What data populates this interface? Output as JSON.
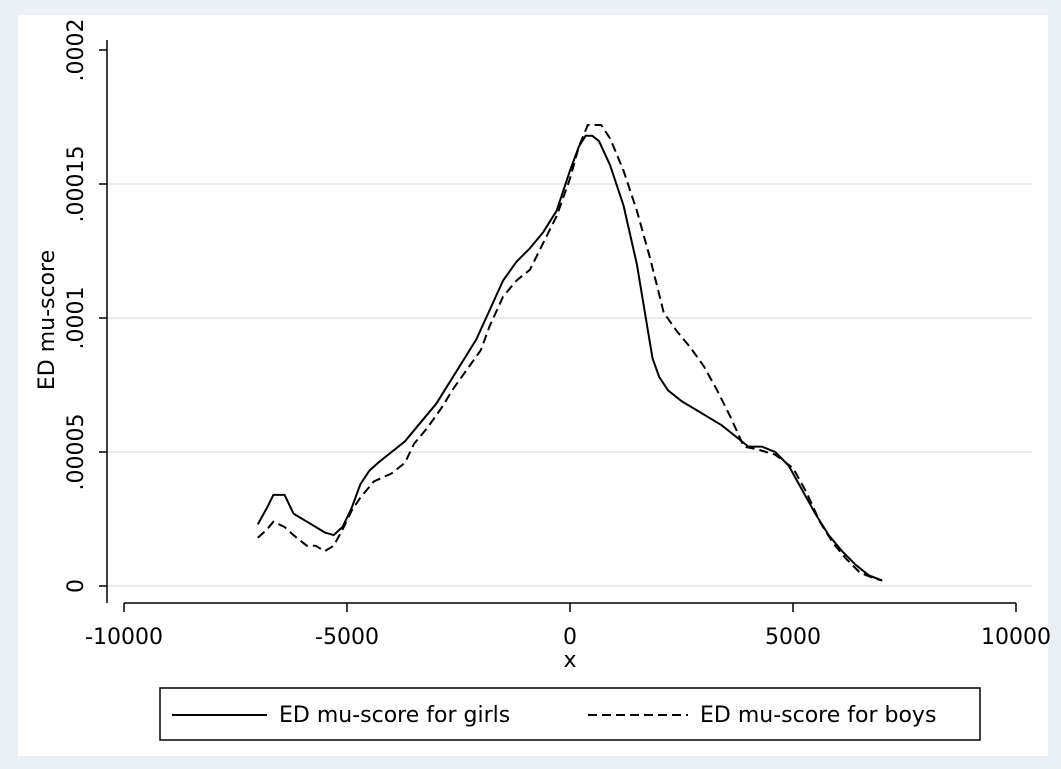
{
  "chart_data": {
    "type": "line",
    "title": "",
    "xlabel": "x",
    "ylabel": "ED mu-score",
    "xlim": [
      -10000,
      10000
    ],
    "ylim": [
      0,
      0.0002
    ],
    "x_ticks": [
      -10000,
      -5000,
      0,
      5000,
      10000
    ],
    "x_tick_labels": [
      "-10000",
      "-5000",
      "0",
      "5000",
      "10000"
    ],
    "y_ticks": [
      0,
      5e-05,
      0.0001,
      0.00015,
      0.0002
    ],
    "y_tick_labels": [
      "0",
      ".00005",
      ".0001",
      ".00015",
      ".0002"
    ],
    "grid": true,
    "legend_position": "bottom",
    "colors": {
      "plot_bg": "#ffffff",
      "outer_bg": "#eaf0f3",
      "grid": "#e6ebee",
      "line": "#000000"
    },
    "series": [
      {
        "name": "ED mu-score for girls",
        "style": "solid",
        "points": [
          [
            -7000,
            2.3e-05
          ],
          [
            -6800,
            2.9e-05
          ],
          [
            -6650,
            3.4e-05
          ],
          [
            -6400,
            3.4e-05
          ],
          [
            -6200,
            2.7e-05
          ],
          [
            -5900,
            2.4e-05
          ],
          [
            -5700,
            2.2e-05
          ],
          [
            -5500,
            2e-05
          ],
          [
            -5300,
            1.9e-05
          ],
          [
            -5100,
            2.2e-05
          ],
          [
            -4900,
            2.9e-05
          ],
          [
            -4700,
            3.8e-05
          ],
          [
            -4500,
            4.3e-05
          ],
          [
            -4300,
            4.6e-05
          ],
          [
            -4000,
            5e-05
          ],
          [
            -3700,
            5.4e-05
          ],
          [
            -3300,
            6.2e-05
          ],
          [
            -3000,
            6.8e-05
          ],
          [
            -2700,
            7.6e-05
          ],
          [
            -2400,
            8.4e-05
          ],
          [
            -2100,
            9.2e-05
          ],
          [
            -1800,
            0.000103
          ],
          [
            -1500,
            0.000114
          ],
          [
            -1200,
            0.000121
          ],
          [
            -900,
            0.000126
          ],
          [
            -600,
            0.000132
          ],
          [
            -300,
            0.00014
          ],
          [
            0,
            0.000155
          ],
          [
            200,
            0.000164
          ],
          [
            350,
            0.000168
          ],
          [
            500,
            0.000168
          ],
          [
            650,
            0.000166
          ],
          [
            900,
            0.000157
          ],
          [
            1200,
            0.000142
          ],
          [
            1500,
            0.00012
          ],
          [
            1700,
            0.0001
          ],
          [
            1850,
            8.5e-05
          ],
          [
            2000,
            7.8e-05
          ],
          [
            2200,
            7.3e-05
          ],
          [
            2500,
            6.9e-05
          ],
          [
            2800,
            6.6e-05
          ],
          [
            3100,
            6.3e-05
          ],
          [
            3400,
            6e-05
          ],
          [
            3700,
            5.6e-05
          ],
          [
            4000,
            5.2e-05
          ],
          [
            4300,
            5.2e-05
          ],
          [
            4600,
            5e-05
          ],
          [
            4900,
            4.5e-05
          ],
          [
            5200,
            3.6e-05
          ],
          [
            5500,
            2.7e-05
          ],
          [
            5800,
            1.9e-05
          ],
          [
            6100,
            1.3e-05
          ],
          [
            6400,
            8e-06
          ],
          [
            6700,
            4e-06
          ],
          [
            7000,
            2e-06
          ]
        ]
      },
      {
        "name": "ED mu-score for boys",
        "style": "dashed",
        "points": [
          [
            -7000,
            1.8e-05
          ],
          [
            -6800,
            2.1e-05
          ],
          [
            -6650,
            2.4e-05
          ],
          [
            -6400,
            2.2e-05
          ],
          [
            -6200,
            1.9e-05
          ],
          [
            -5900,
            1.5e-05
          ],
          [
            -5700,
            1.5e-05
          ],
          [
            -5500,
            1.3e-05
          ],
          [
            -5300,
            1.5e-05
          ],
          [
            -5100,
            2.1e-05
          ],
          [
            -4900,
            2.8e-05
          ],
          [
            -4700,
            3.3e-05
          ],
          [
            -4400,
            3.9e-05
          ],
          [
            -4000,
            4.2e-05
          ],
          [
            -3700,
            4.6e-05
          ],
          [
            -3500,
            5.3e-05
          ],
          [
            -3200,
            5.9e-05
          ],
          [
            -2900,
            6.6e-05
          ],
          [
            -2600,
            7.4e-05
          ],
          [
            -2300,
            8.1e-05
          ],
          [
            -2000,
            8.8e-05
          ],
          [
            -1800,
            9.7e-05
          ],
          [
            -1500,
            0.000108
          ],
          [
            -1200,
            0.000114
          ],
          [
            -900,
            0.000118
          ],
          [
            -600,
            0.000128
          ],
          [
            -300,
            0.000138
          ],
          [
            0,
            0.000152
          ],
          [
            200,
            0.000164
          ],
          [
            400,
            0.000172
          ],
          [
            700,
            0.000172
          ],
          [
            900,
            0.000167
          ],
          [
            1200,
            0.000155
          ],
          [
            1500,
            0.00014
          ],
          [
            1800,
            0.000122
          ],
          [
            2100,
            0.000102
          ],
          [
            2400,
            9.5e-05
          ],
          [
            2700,
            8.9e-05
          ],
          [
            3000,
            8.2e-05
          ],
          [
            3300,
            7.3e-05
          ],
          [
            3600,
            6.3e-05
          ],
          [
            3900,
            5.2e-05
          ],
          [
            4200,
            5.1e-05
          ],
          [
            4600,
            4.9e-05
          ],
          [
            5000,
            4.4e-05
          ],
          [
            5300,
            3.5e-05
          ],
          [
            5600,
            2.4e-05
          ],
          [
            5900,
            1.6e-05
          ],
          [
            6200,
            1e-05
          ],
          [
            6500,
            5e-06
          ],
          [
            6800,
            3e-06
          ],
          [
            7000,
            2e-06
          ]
        ]
      }
    ]
  }
}
